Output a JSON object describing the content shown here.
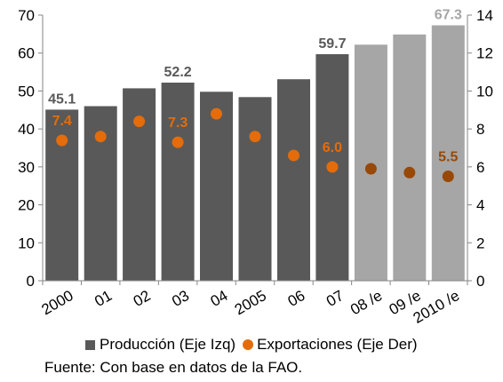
{
  "chart_data": {
    "type": "bar",
    "categories": [
      "2000",
      "01",
      "02",
      "03",
      "04",
      "2005",
      "06",
      "07",
      "08 /e",
      "09 /e",
      "2010 /e"
    ],
    "series": [
      {
        "name": "Producción (Eje Izq)",
        "type": "bar",
        "axis": "left",
        "values": [
          45.1,
          46.0,
          50.7,
          52.2,
          49.8,
          48.4,
          53.1,
          59.7,
          62.2,
          64.9,
          67.3
        ],
        "estimate_flags": [
          false,
          false,
          false,
          false,
          false,
          false,
          false,
          false,
          true,
          true,
          true
        ],
        "data_labels": [
          {
            "index": 0,
            "text": "45.1"
          },
          {
            "index": 3,
            "text": "52.2"
          },
          {
            "index": 7,
            "text": "59.7"
          },
          {
            "index": 10,
            "text": "67.3"
          }
        ]
      },
      {
        "name": "Exportaciones (Eje Der)",
        "type": "scatter",
        "axis": "right",
        "values": [
          7.4,
          7.6,
          8.4,
          7.3,
          8.8,
          7.6,
          6.6,
          6.0,
          5.9,
          5.7,
          5.5
        ],
        "data_labels": [
          {
            "index": 0,
            "text": "7.4"
          },
          {
            "index": 3,
            "text": "7.3"
          },
          {
            "index": 7,
            "text": "6.0"
          },
          {
            "index": 10,
            "text": "5.5"
          }
        ]
      }
    ],
    "y_left": {
      "ylim": [
        0,
        70
      ],
      "ticks": [
        "0",
        "10",
        "20",
        "30",
        "40",
        "50",
        "60",
        "70"
      ]
    },
    "y_right": {
      "ylim": [
        0,
        14
      ],
      "ticks": [
        "0",
        "2",
        "4",
        "6",
        "8",
        "10",
        "12",
        "14"
      ]
    },
    "grid": false,
    "legend_position": "bottom",
    "xlabel": "",
    "ylabel": "",
    "title": ""
  },
  "colors": {
    "bar_actual": "#595959",
    "bar_estimate": "#a6a6a6",
    "dot_actual": "#e46c0a",
    "dot_estimate": "#984807",
    "label_actual_bar": "#595959",
    "label_estimate_bar": "#a6a6a6",
    "label_dot_actual": "#e46c0a",
    "label_dot_estimate": "#984807"
  },
  "legend": {
    "production": "Producción (Eje Izq)",
    "exports": "Exportaciones (Eje Der)"
  },
  "source": "Fuente: Con base en datos de la FAO."
}
